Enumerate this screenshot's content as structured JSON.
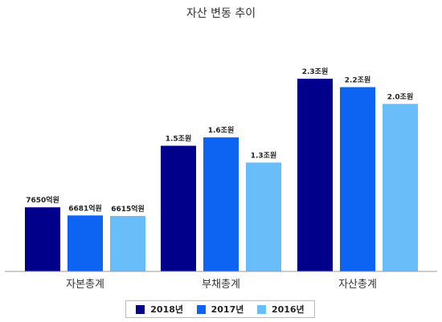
{
  "chart_data": {
    "type": "bar",
    "title": "자산 변동 추이",
    "categories": [
      "자본총계",
      "부채총계",
      "자산총계"
    ],
    "series": [
      {
        "name": "2018년",
        "color": "#00008b",
        "values": [
          7650,
          15000,
          23000
        ],
        "labels": [
          "7650억원",
          "1.5조원",
          "2.3조원"
        ]
      },
      {
        "name": "2017년",
        "color": "#0d63f2",
        "values": [
          6681,
          16000,
          22000
        ],
        "labels": [
          "6681억원",
          "1.6조원",
          "2.2조원"
        ]
      },
      {
        "name": "2016년",
        "color": "#69bdf9",
        "values": [
          6615,
          13000,
          20000
        ],
        "labels": [
          "6615억원",
          "1.3조원",
          "2.0조원"
        ]
      }
    ],
    "unit": "억원",
    "ylim": [
      0,
      25500
    ],
    "grid": false,
    "legend_position": "bottom"
  }
}
